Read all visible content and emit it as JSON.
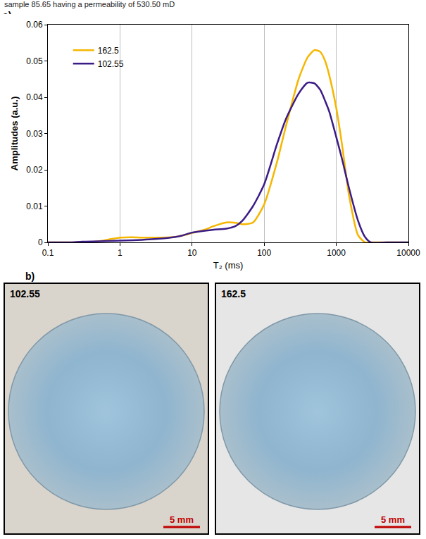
{
  "header_text": "sample 85.65 having a permeability of 530.50 mD",
  "panel_labels": [
    "a)",
    "b)"
  ],
  "chart_data": {
    "type": "line",
    "x_label": "T₂ (ms)",
    "y_label": "Amplitudes (a.u.)",
    "log": "x",
    "grid": "x",
    "legend": "upper left",
    "xlim": [
      0.1,
      10000
    ],
    "xticks": [
      0.1,
      1,
      10,
      100,
      1000,
      10000
    ],
    "ylim": [
      0,
      0.06
    ],
    "yticks": [
      0,
      0.01,
      0.02,
      0.03,
      0.04,
      0.05,
      0.06
    ],
    "x": [
      0.1,
      0.2,
      0.3,
      0.5,
      0.7,
      1,
      1.5,
      2,
      3,
      5,
      7,
      10,
      15,
      20,
      30,
      40,
      50,
      70,
      100,
      150,
      200,
      300,
      400,
      500,
      600,
      700,
      800,
      1000,
      1200,
      1500,
      2000,
      2500,
      3000,
      5000,
      10000
    ],
    "series": [
      {
        "name": "162.5",
        "color": "#f5b700",
        "line_style": "solid",
        "values": [
          0,
          0,
          0,
          0.0003,
          0.0008,
          0.0013,
          0.0014,
          0.0013,
          0.0013,
          0.0014,
          0.0018,
          0.0026,
          0.0035,
          0.0045,
          0.0055,
          0.0054,
          0.005,
          0.0055,
          0.0105,
          0.022,
          0.032,
          0.045,
          0.051,
          0.053,
          0.0525,
          0.05,
          0.046,
          0.037,
          0.027,
          0.013,
          0.002,
          0,
          0,
          0,
          0
        ]
      },
      {
        "name": "102.55",
        "color": "#3b1c86",
        "line_style": "solid",
        "values": [
          0,
          0,
          0.0002,
          0.0003,
          0.0004,
          0.0005,
          0.0006,
          0.0007,
          0.0009,
          0.0013,
          0.0018,
          0.0027,
          0.0032,
          0.0035,
          0.0038,
          0.0045,
          0.006,
          0.01,
          0.016,
          0.027,
          0.034,
          0.041,
          0.044,
          0.0438,
          0.042,
          0.039,
          0.036,
          0.029,
          0.023,
          0.015,
          0.006,
          0.0015,
          0,
          0,
          0
        ]
      }
    ]
  },
  "photos": [
    {
      "label": "102.55",
      "scale_bar": "5 mm"
    },
    {
      "label": "162.5",
      "scale_bar": "5 mm"
    }
  ]
}
